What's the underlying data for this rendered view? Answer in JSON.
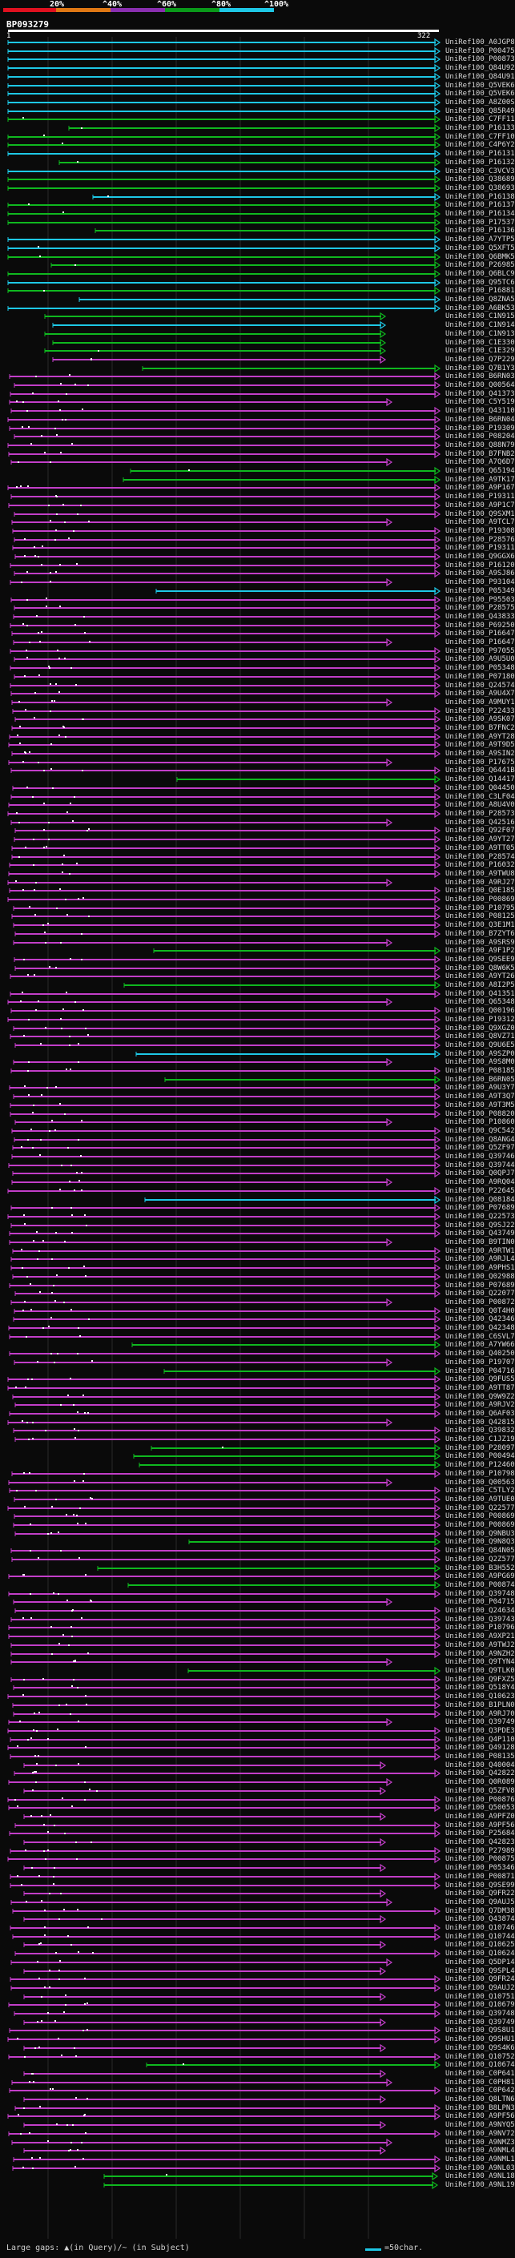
{
  "query": {
    "id": "BP093279",
    "start": 1,
    "end": 322
  },
  "scale": {
    "labels": [
      "20%",
      "^40%",
      "^60%",
      "^80%",
      "^100%"
    ],
    "colors": [
      "#e0111f",
      "#e07814",
      "#8a2fb0",
      "#0a9a1a",
      "#1ec8e6"
    ]
  },
  "legend": {
    "gaps": "Large gaps: ▲(in Query)/~ (in Subject)",
    "short": "=50char."
  },
  "hits": [
    {
      "id": "UniRef100_A0JGP8"
    },
    {
      "id": "UniRef100_P00475"
    },
    {
      "id": "UniRef100_P00873"
    },
    {
      "id": "UniRef100_Q84U92"
    },
    {
      "id": "UniRef100_Q84U91"
    },
    {
      "id": "UniRef100_Q5VEK6"
    },
    {
      "id": "UniRef100_Q5VEK6"
    },
    {
      "id": "UniRef100_A8Z00S"
    },
    {
      "id": "UniRef100_Q85R49"
    },
    {
      "id": "UniRef100_C7FF11"
    },
    {
      "id": "UniRef100_P16133"
    },
    {
      "id": "UniRef100_C7FF10"
    },
    {
      "id": "UniRef100_C4P6Y2"
    },
    {
      "id": "UniRef100_P16131"
    },
    {
      "id": "UniRef100_P16132"
    },
    {
      "id": "UniRef100_C3VCV3"
    },
    {
      "id": "UniRef100_Q38689"
    },
    {
      "id": "UniRef100_Q38693"
    },
    {
      "id": "UniRef100_P16138"
    },
    {
      "id": "UniRef100_P16137"
    },
    {
      "id": "UniRef100_P16134"
    },
    {
      "id": "UniRef100_P17537"
    },
    {
      "id": "UniRef100_P16136"
    },
    {
      "id": "UniRef100_A7YTP5"
    },
    {
      "id": "UniRef100_Q5XFT5"
    },
    {
      "id": "UniRef100_Q6BMK5"
    },
    {
      "id": "UniRef100_P26985"
    },
    {
      "id": "UniRef100_Q6BLC9"
    },
    {
      "id": "UniRef100_Q95TC6"
    },
    {
      "id": "UniRef100_P16881"
    },
    {
      "id": "UniRef100_Q8ZNA5"
    },
    {
      "id": "UniRef100_A6BK53"
    },
    {
      "id": "UniRef100_C1N915"
    },
    {
      "id": "UniRef100_C1N914"
    },
    {
      "id": "UniRef100_C1N913"
    },
    {
      "id": "UniRef100_C1E330"
    },
    {
      "id": "UniRef100_C1E329"
    },
    {
      "id": "UniRef100_Q7P229"
    },
    {
      "id": "UniRef100_Q7B1Y3"
    },
    {
      "id": "UniRef100_B6RN03"
    },
    {
      "id": "UniRef100_Q00564"
    },
    {
      "id": "UniRef100_Q41373"
    },
    {
      "id": "UniRef100_C5Y519"
    },
    {
      "id": "UniRef100_Q43110"
    },
    {
      "id": "UniRef100_B6RN04"
    },
    {
      "id": "UniRef100_P19309"
    },
    {
      "id": "UniRef100_P08204"
    },
    {
      "id": "UniRef100_Q88N79"
    },
    {
      "id": "UniRef100_B7FNB2"
    },
    {
      "id": "UniRef100_A7Q6D7"
    },
    {
      "id": "UniRef100_Q65194"
    },
    {
      "id": "UniRef100_A9TK17"
    },
    {
      "id": "UniRef100_A9P167"
    },
    {
      "id": "UniRef100_P19311"
    },
    {
      "id": "UniRef100_A9P1C7"
    },
    {
      "id": "UniRef100_Q9SXM1"
    },
    {
      "id": "UniRef100_A9TCL7"
    },
    {
      "id": "UniRef100_P19308"
    },
    {
      "id": "UniRef100_P28576"
    },
    {
      "id": "UniRef100_P19311"
    },
    {
      "id": "UniRef100_Q9GGX6"
    },
    {
      "id": "UniRef100_P16120"
    },
    {
      "id": "UniRef100_A9SJ86"
    },
    {
      "id": "UniRef100_P93104"
    },
    {
      "id": "UniRef100_P05349"
    },
    {
      "id": "UniRef100_P95503"
    },
    {
      "id": "UniRef100_P28575"
    },
    {
      "id": "UniRef100_Q43833"
    },
    {
      "id": "UniRef100_P69250"
    },
    {
      "id": "UniRef100_P16647"
    },
    {
      "id": "UniRef100_P16647"
    },
    {
      "id": "UniRef100_P97055"
    },
    {
      "id": "UniRef100_A9U5U0"
    },
    {
      "id": "UniRef100_P05348"
    },
    {
      "id": "UniRef100_P07180"
    },
    {
      "id": "UniRef100_Q24574"
    },
    {
      "id": "UniRef100_A9U4X7"
    },
    {
      "id": "UniRef100_A9MUY1"
    },
    {
      "id": "UniRef100_P22433"
    },
    {
      "id": "UniRef100_A9SK07"
    },
    {
      "id": "UniRef100_B7FNC2"
    },
    {
      "id": "UniRef100_A9YT28"
    },
    {
      "id": "UniRef100_A9T9D5"
    },
    {
      "id": "UniRef100_A9SIN2"
    },
    {
      "id": "UniRef100_P17675"
    },
    {
      "id": "UniRef100_Q6441B"
    },
    {
      "id": "UniRef100_Q14417"
    },
    {
      "id": "UniRef100_Q04450"
    },
    {
      "id": "UniRef100_C3LF04"
    },
    {
      "id": "UniRef100_A8U4V0"
    },
    {
      "id": "UniRef100_P28573"
    },
    {
      "id": "UniRef100_Q42516"
    },
    {
      "id": "UniRef100_Q92F07"
    },
    {
      "id": "UniRef100_A9YT27"
    },
    {
      "id": "UniRef100_A9TT05"
    },
    {
      "id": "UniRef100_P28574"
    },
    {
      "id": "UniRef100_P16032"
    },
    {
      "id": "UniRef100_A9TWU8"
    },
    {
      "id": "UniRef100_A9RJ27"
    },
    {
      "id": "UniRef100_Q0E185"
    },
    {
      "id": "UniRef100_P00869"
    },
    {
      "id": "UniRef100_P10795"
    },
    {
      "id": "UniRef100_P08125"
    },
    {
      "id": "UniRef100_Q3E1M1"
    },
    {
      "id": "UniRef100_B7ZYT6"
    },
    {
      "id": "UniRef100_A9SRS9"
    },
    {
      "id": "UniRef100_A9F1P2"
    },
    {
      "id": "UniRef100_Q9SEE9"
    },
    {
      "id": "UniRef100_Q8W6K5"
    },
    {
      "id": "UniRef100_A9YT26"
    },
    {
      "id": "UniRef100_A8I2P5"
    },
    {
      "id": "UniRef100_Q41351"
    },
    {
      "id": "UniRef100_Q65348"
    },
    {
      "id": "UniRef100_Q00196"
    },
    {
      "id": "UniRef100_P19312"
    },
    {
      "id": "UniRef100_Q9XGZ0"
    },
    {
      "id": "UniRef100_Q8VZ71"
    },
    {
      "id": "UniRef100_Q9U6E5"
    },
    {
      "id": "UniRef100_A9SZP0"
    },
    {
      "id": "UniRef100_A9S8M0"
    },
    {
      "id": "UniRef100_P08185"
    },
    {
      "id": "UniRef100_B6RN05"
    },
    {
      "id": "UniRef100_A9U3Y7"
    },
    {
      "id": "UniRef100_A9T3Q7"
    },
    {
      "id": "UniRef100_A9T3M5"
    },
    {
      "id": "UniRef100_P08820"
    },
    {
      "id": "UniRef100_P10860"
    },
    {
      "id": "UniRef100_Q9C542"
    },
    {
      "id": "UniRef100_Q8ANG4"
    },
    {
      "id": "UniRef100_Q5ZF97"
    },
    {
      "id": "UniRef100_Q39746"
    },
    {
      "id": "UniRef100_Q39744"
    },
    {
      "id": "UniRef100_Q0QPJ7"
    },
    {
      "id": "UniRef100_A9RQ04"
    },
    {
      "id": "UniRef100_P22645"
    },
    {
      "id": "UniRef100_Q08184"
    },
    {
      "id": "UniRef100_P07689"
    },
    {
      "id": "UniRef100_Q22573"
    },
    {
      "id": "UniRef100_Q9SJ22"
    },
    {
      "id": "UniRef100_Q43749"
    },
    {
      "id": "UniRef100_B9TIN0"
    },
    {
      "id": "UniRef100_A9RTW1"
    },
    {
      "id": "UniRef100_A9RJL4"
    },
    {
      "id": "UniRef100_A9PHS1"
    },
    {
      "id": "UniRef100_Q02988"
    },
    {
      "id": "UniRef100_P07689"
    },
    {
      "id": "UniRef100_Q22077"
    },
    {
      "id": "UniRef100_P00872"
    },
    {
      "id": "UniRef100_Q0T4H0"
    },
    {
      "id": "UniRef100_Q42346"
    },
    {
      "id": "UniRef100_Q42348"
    },
    {
      "id": "UniRef100_C6SVL7"
    },
    {
      "id": "UniRef100_A7YW66"
    },
    {
      "id": "UniRef100_Q40250"
    },
    {
      "id": "UniRef100_P19707"
    },
    {
      "id": "UniRef100_P04716"
    },
    {
      "id": "UniRef100_Q9FUS5"
    },
    {
      "id": "UniRef100_A9TT87"
    },
    {
      "id": "UniRef100_Q9W9Z2"
    },
    {
      "id": "UniRef100_A9RJV2"
    },
    {
      "id": "UniRef100_Q6AF03"
    },
    {
      "id": "UniRef100_Q42815"
    },
    {
      "id": "UniRef100_Q39832"
    },
    {
      "id": "UniRef100_C1JZ19"
    },
    {
      "id": "UniRef100_P28097"
    },
    {
      "id": "UniRef100_P00494"
    },
    {
      "id": "UniRef100_P12460"
    },
    {
      "id": "UniRef100_P10798"
    },
    {
      "id": "UniRef100_Q00563"
    },
    {
      "id": "UniRef100_C5TLY2"
    },
    {
      "id": "UniRef100_A9TUE0"
    },
    {
      "id": "UniRef100_Q22577"
    },
    {
      "id": "UniRef100_P00869"
    },
    {
      "id": "UniRef100_P00869"
    },
    {
      "id": "UniRef100_Q9NBU3"
    },
    {
      "id": "UniRef100_Q9N8Q3"
    },
    {
      "id": "UniRef100_Q84N05"
    },
    {
      "id": "UniRef100_Q2Z577"
    },
    {
      "id": "UniRef100_B3H552"
    },
    {
      "id": "UniRef100_A9PG69"
    },
    {
      "id": "UniRef100_P00874"
    },
    {
      "id": "UniRef100_Q39748"
    },
    {
      "id": "UniRef100_P04715"
    },
    {
      "id": "UniRef100_Q24634"
    },
    {
      "id": "UniRef100_Q39743"
    },
    {
      "id": "UniRef100_P10796"
    },
    {
      "id": "UniRef100_A9XP21"
    },
    {
      "id": "UniRef100_A9TWJ2"
    },
    {
      "id": "UniRef100_A9NZH2"
    },
    {
      "id": "UniRef100_Q9TYN4"
    },
    {
      "id": "UniRef100_Q9TLK0"
    },
    {
      "id": "UniRef100_Q9FXZ5"
    },
    {
      "id": "UniRef100_Q518Y4"
    },
    {
      "id": "UniRef100_Q10623"
    },
    {
      "id": "UniRef100_B1PLN0"
    },
    {
      "id": "UniRef100_A9RJ70"
    },
    {
      "id": "UniRef100_Q39749"
    },
    {
      "id": "UniRef100_Q3PDE3"
    },
    {
      "id": "UniRef100_Q4P110"
    },
    {
      "id": "UniRef100_Q49128"
    },
    {
      "id": "UniRef100_P08135"
    },
    {
      "id": "UniRef100_Q40004"
    },
    {
      "id": "UniRef100_Q42822"
    },
    {
      "id": "UniRef100_Q0R089"
    },
    {
      "id": "UniRef100_Q5ZFV8"
    },
    {
      "id": "UniRef100_P00876"
    },
    {
      "id": "UniRef100_Q50053"
    },
    {
      "id": "UniRef100_A9PFZ0"
    },
    {
      "id": "UniRef100_A9PF56"
    },
    {
      "id": "UniRef100_P25684"
    },
    {
      "id": "UniRef100_Q42823"
    },
    {
      "id": "UniRef100_P27989"
    },
    {
      "id": "UniRef100_P00875"
    },
    {
      "id": "UniRef100_P05346"
    },
    {
      "id": "UniRef100_P00871"
    },
    {
      "id": "UniRef100_Q9SE99"
    },
    {
      "id": "UniRef100_Q9FR22"
    },
    {
      "id": "UniRef100_Q9AUJ5"
    },
    {
      "id": "UniRef100_Q7DM38"
    },
    {
      "id": "UniRef100_Q43874"
    },
    {
      "id": "UniRef100_Q10746"
    },
    {
      "id": "UniRef100_Q10744"
    },
    {
      "id": "UniRef100_Q10625"
    },
    {
      "id": "UniRef100_Q10624"
    },
    {
      "id": "UniRef100_Q5DP14"
    },
    {
      "id": "UniRef100_Q9SPL4"
    },
    {
      "id": "UniRef100_Q9FR24"
    },
    {
      "id": "UniRef100_Q9AUJ2"
    },
    {
      "id": "UniRef100_Q10751"
    },
    {
      "id": "UniRef100_Q10679"
    },
    {
      "id": "UniRef100_Q39748"
    },
    {
      "id": "UniRef100_Q39749"
    },
    {
      "id": "UniRef100_Q9S8U1"
    },
    {
      "id": "UniRef100_Q9SHU1"
    },
    {
      "id": "UniRef100_Q9S4K6"
    },
    {
      "id": "UniRef100_Q10752"
    },
    {
      "id": "UniRef100_Q10674"
    },
    {
      "id": "UniRef100_C0P641"
    },
    {
      "id": "UniRef100_C0PH81"
    },
    {
      "id": "UniRef100_C0P642"
    },
    {
      "id": "UniRef100_Q8LTN6"
    },
    {
      "id": "UniRef100_B8LPN3"
    },
    {
      "id": "UniRef100_A9PF56"
    },
    {
      "id": "UniRef100_A9NYQ5"
    },
    {
      "id": "UniRef100_A9NV72"
    },
    {
      "id": "UniRef100_A9NMZ3"
    },
    {
      "id": "UniRef100_A9NML4"
    },
    {
      "id": "UniRef100_A9NML1"
    },
    {
      "id": "UniRef100_A9NL03"
    },
    {
      "id": "UniRef100_A9NL18"
    },
    {
      "id": "UniRef100_A9NL19"
    }
  ]
}
